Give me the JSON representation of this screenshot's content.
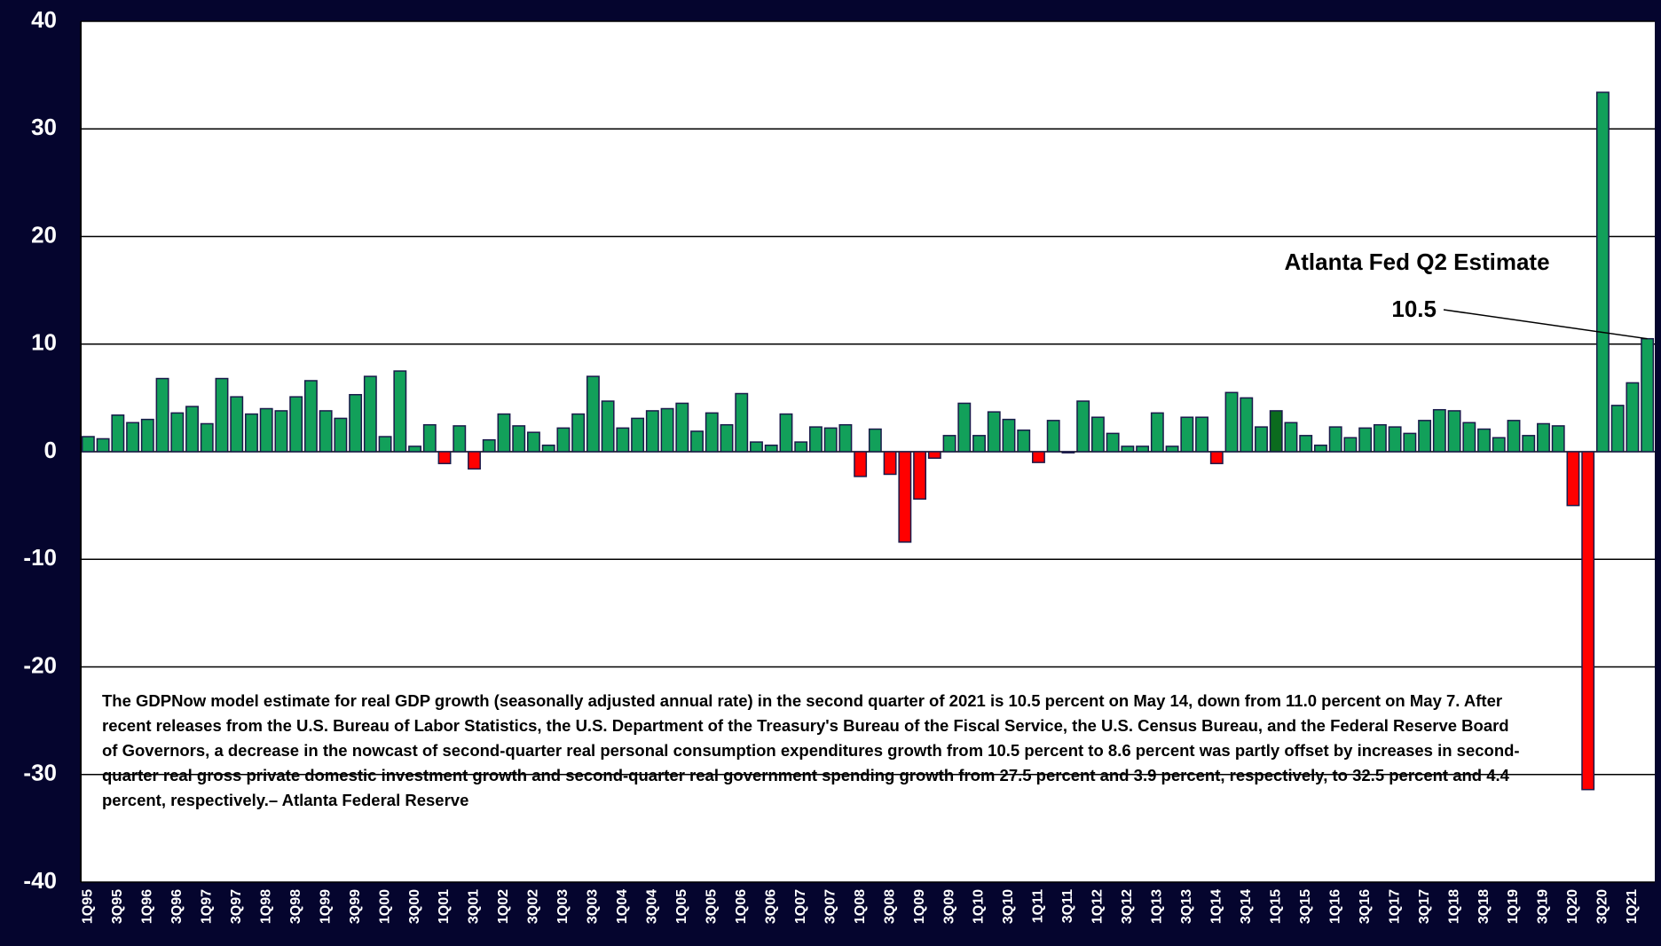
{
  "chart_data": {
    "type": "bar",
    "annotation": "Atlanta Fed Q2 Estimate",
    "note": "The GDPNow model estimate for real GDP growth (seasonally adjusted annual rate) in the second quarter of 2021 is 10.5 percent on May 14, down from 11.0 percent on May 7. After recent releases from the U.S. Bureau of Labor Statistics, the U.S. Department of the Treasury's Bureau of the Fiscal Service, the U.S. Census Bureau, and the Federal Reserve Board of Governors, a decrease in the nowcast of second-quarter real personal consumption expenditures growth from 10.5 percent to 8.6 percent was partly offset by increases in second-quarter real gross private domestic investment growth and second-quarter real government spending growth from 27.5 percent and 3.9 percent, respectively, to 32.5 percent and 4.4 percent, respectively.– Atlanta Federal Reserve",
    "categories": [
      "1Q95",
      null,
      "3Q95",
      null,
      "1Q96",
      null,
      "3Q96",
      null,
      "1Q97",
      null,
      "3Q97",
      null,
      "1Q98",
      null,
      "3Q98",
      null,
      "1Q99",
      null,
      "3Q99",
      null,
      "1Q00",
      null,
      "3Q00",
      null,
      "1Q01",
      null,
      "3Q01",
      null,
      "1Q02",
      null,
      "3Q02",
      null,
      "1Q03",
      null,
      "3Q03",
      null,
      "1Q04",
      null,
      "3Q04",
      null,
      "1Q05",
      null,
      "3Q05",
      null,
      "1Q06",
      null,
      "3Q06",
      null,
      "1Q07",
      null,
      "3Q07",
      null,
      "1Q08",
      null,
      "3Q08",
      null,
      "1Q09",
      null,
      "3Q09",
      null,
      "1Q10",
      null,
      "3Q10",
      null,
      "1Q11",
      null,
      "3Q11",
      null,
      "1Q12",
      null,
      "3Q12",
      null,
      "1Q13",
      null,
      "3Q13",
      null,
      "1Q14",
      null,
      "3Q14",
      null,
      "1Q15",
      null,
      "3Q15",
      null,
      "1Q16",
      null,
      "3Q16",
      null,
      "1Q17",
      null,
      "3Q17",
      null,
      "1Q18",
      null,
      "3Q18",
      null,
      "1Q19",
      null,
      "3Q19",
      null,
      "1Q20",
      null,
      "3Q20",
      null,
      "1Q21",
      null
    ],
    "values": [
      1.4,
      1.2,
      3.4,
      2.7,
      3.0,
      6.8,
      3.6,
      4.2,
      2.6,
      6.8,
      5.1,
      3.5,
      4.0,
      3.8,
      5.1,
      6.6,
      3.8,
      3.1,
      5.3,
      7.0,
      1.4,
      7.5,
      0.5,
      2.5,
      -1.1,
      2.4,
      -1.6,
      1.1,
      3.5,
      2.4,
      1.8,
      0.6,
      2.2,
      3.5,
      7.0,
      4.7,
      2.2,
      3.1,
      3.8,
      4.0,
      4.5,
      1.9,
      3.6,
      2.5,
      5.4,
      0.9,
      0.6,
      3.5,
      0.9,
      2.3,
      2.2,
      2.5,
      -2.3,
      2.1,
      -2.1,
      -8.4,
      -4.4,
      -0.6,
      1.5,
      4.5,
      1.5,
      3.7,
      3.0,
      2.0,
      -1.0,
      2.9,
      -0.1,
      4.7,
      3.2,
      1.7,
      0.5,
      0.5,
      3.6,
      0.5,
      3.2,
      3.2,
      -1.1,
      5.5,
      5.0,
      2.3,
      3.8,
      2.7,
      1.5,
      0.6,
      2.3,
      1.3,
      2.2,
      2.5,
      2.3,
      1.7,
      2.9,
      3.9,
      3.8,
      2.7,
      2.1,
      1.3,
      2.9,
      1.5,
      2.6,
      2.4,
      -5.0,
      -31.4,
      33.4,
      4.3,
      6.4,
      10.5
    ],
    "color": "#12a05a",
    "negative_color": "#ff0000",
    "highlight_color": "#0b6b1e",
    "highlight_category": "1Q15",
    "ylim": [
      -40,
      40
    ],
    "yticks": [
      -40,
      -30,
      -20,
      -10,
      0,
      10,
      20,
      30,
      40
    ],
    "grid": true
  }
}
